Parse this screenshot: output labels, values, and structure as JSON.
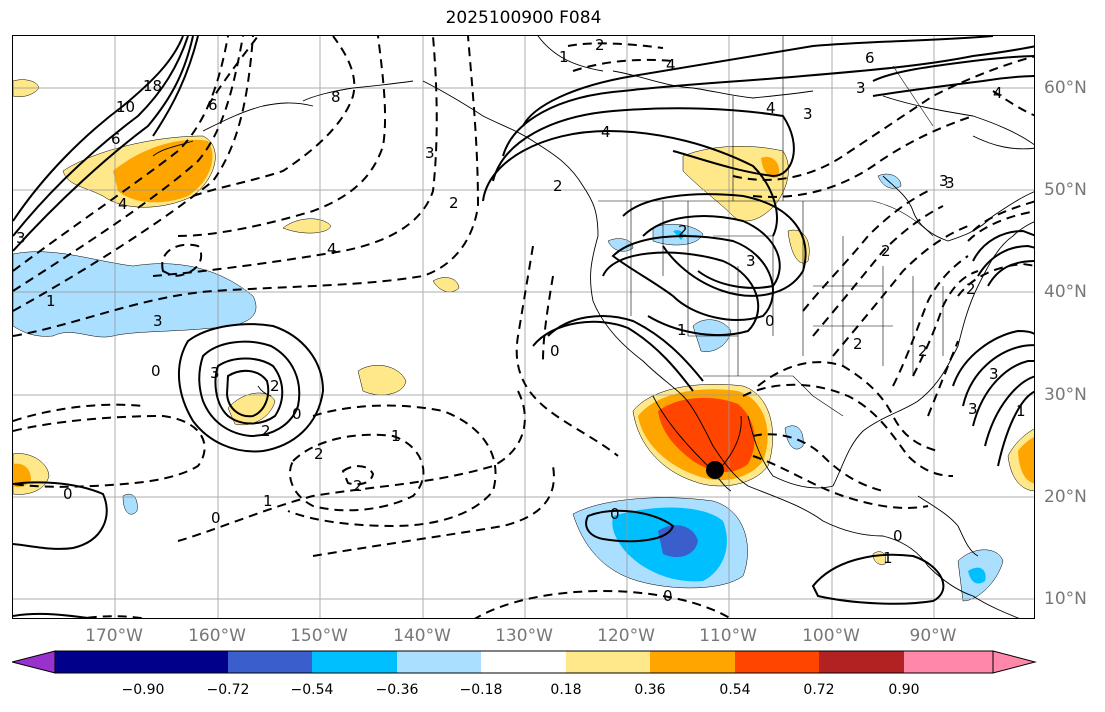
{
  "title": "2025100900 F084",
  "map": {
    "lon_labels": [
      "170°W",
      "160°W",
      "150°W",
      "140°W",
      "130°W",
      "120°W",
      "110°W",
      "100°W",
      "90°W"
    ],
    "lat_labels": [
      "60°N",
      "50°N",
      "40°N",
      "30°N",
      "20°N",
      "10°N"
    ],
    "contour_labels": [
      "2",
      "1",
      "2",
      "6",
      "4",
      "3",
      "4",
      "3",
      "4",
      "3",
      "4",
      "6",
      "10",
      "18",
      "6",
      "8",
      "3",
      "2",
      "4",
      "3",
      "4",
      "1",
      "3",
      "0",
      "2",
      "0",
      "3",
      "2",
      "0",
      "1",
      "2",
      "2",
      "1",
      "0",
      "3",
      "2",
      "0",
      "1",
      "2",
      "0",
      "0",
      "0",
      "2",
      "1",
      "3",
      "2",
      "3",
      "2",
      "1",
      "0",
      "3"
    ],
    "marker": "black-dot"
  },
  "colorbar": {
    "ticks": [
      "−0.90",
      "−0.72",
      "−0.54",
      "−0.36",
      "−0.18",
      "0.18",
      "0.36",
      "0.54",
      "0.72",
      "0.90"
    ],
    "colors": [
      "#9932cc",
      "#00008b",
      "#3a5fcd",
      "#00bfff",
      "#aadfff",
      "#ffffff",
      "#ffe88a",
      "#ffa500",
      "#ff4500",
      "#b22222",
      "#ff88aa"
    ]
  }
}
